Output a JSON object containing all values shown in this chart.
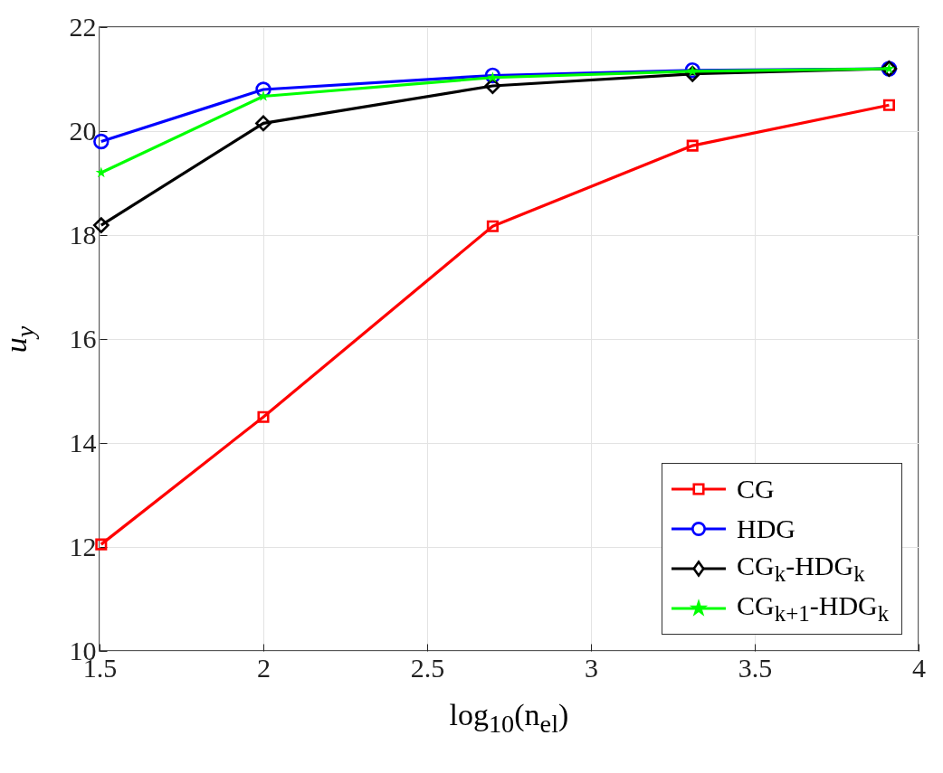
{
  "chart_data": {
    "type": "line",
    "xlabel": "log$_{10}$(n$_{el}$)",
    "ylabel": "u$_{y}$",
    "x": [
      1.505,
      2.0,
      2.7,
      3.31,
      3.91
    ],
    "series": [
      {
        "name": "CG",
        "color": "#ff0000",
        "marker": "square",
        "values": [
          12.05,
          14.5,
          18.17,
          19.72,
          20.5
        ]
      },
      {
        "name": "HDG",
        "color": "#0000ff",
        "marker": "circle",
        "values": [
          19.8,
          20.8,
          21.07,
          21.17,
          21.2
        ]
      },
      {
        "name": "CG$_{k}$-HDG$_{k}$",
        "color": "#000000",
        "marker": "diamond",
        "values": [
          18.19,
          20.15,
          20.87,
          21.1,
          21.2
        ]
      },
      {
        "name": "CG$_{k+1}$-HDG$_{k}$",
        "color": "#00ff00",
        "marker": "star",
        "values": [
          19.2,
          20.67,
          21.03,
          21.15,
          21.2
        ]
      }
    ],
    "xlim": [
      1.5,
      4
    ],
    "xticks": [
      1.5,
      2,
      2.5,
      3,
      3.5,
      4
    ],
    "ylim": [
      10,
      22
    ],
    "yticks": [
      10,
      12,
      14,
      16,
      18,
      20,
      22
    ],
    "grid": true,
    "legend": "bottom right"
  }
}
